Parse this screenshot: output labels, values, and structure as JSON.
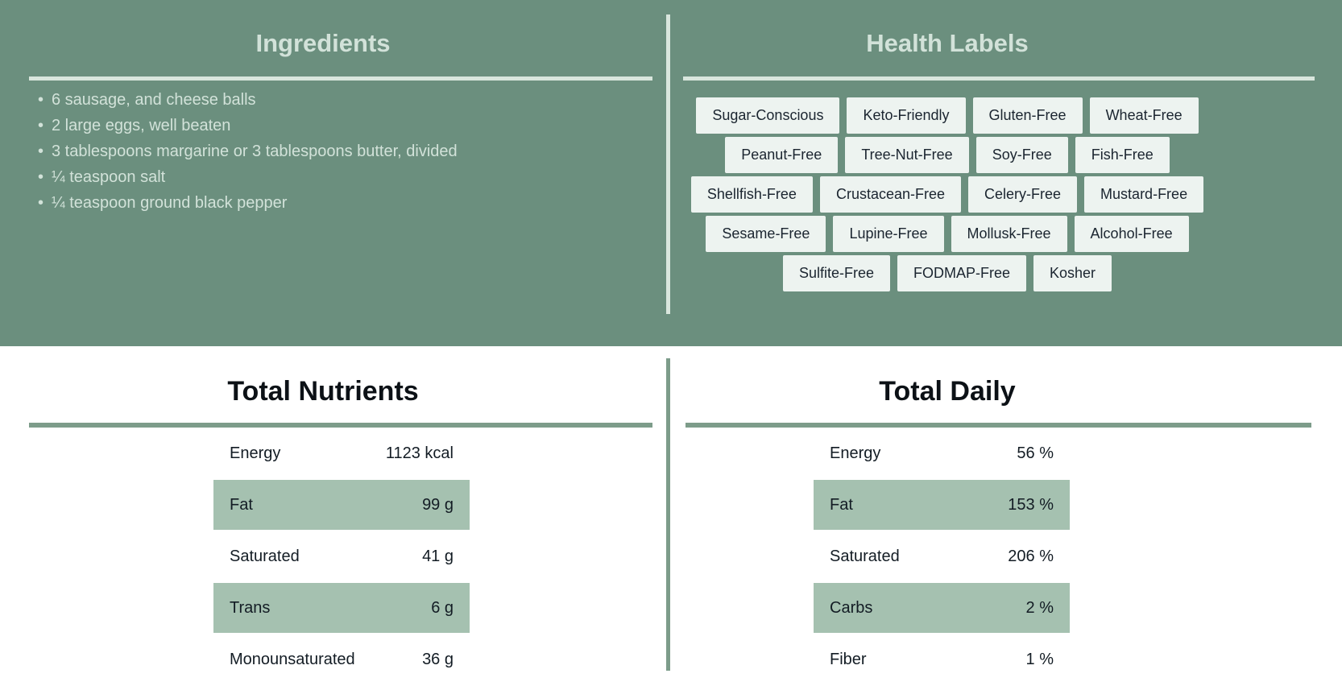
{
  "colors": {
    "top_background": "#6b8f7e",
    "pale_divider": "#d9e6dd",
    "pale_text": "#d2e2d9",
    "sage_accent": "#7d9c8a",
    "row_highlight": "#a5c1b0",
    "badge_background": "#edf3f0",
    "dark_text": "#131c24"
  },
  "ingredients": {
    "title": "Ingredients",
    "items": [
      "6 sausage, and cheese balls",
      "2 large eggs, well beaten",
      "3 tablespoons margarine or 3 tablespoons butter, divided",
      "¼ teaspoon salt",
      "¼ teaspoon ground black pepper"
    ]
  },
  "health_labels": {
    "title": "Health Labels",
    "labels": [
      "Sugar-Conscious",
      "Keto-Friendly",
      "Gluten-Free",
      "Wheat-Free",
      "Peanut-Free",
      "Tree-Nut-Free",
      "Soy-Free",
      "Fish-Free",
      "Shellfish-Free",
      "Crustacean-Free",
      "Celery-Free",
      "Mustard-Free",
      "Sesame-Free",
      "Lupine-Free",
      "Mollusk-Free",
      "Alcohol-Free",
      "Sulfite-Free",
      "FODMAP-Free",
      "Kosher"
    ]
  },
  "total_nutrients": {
    "title": "Total Nutrients",
    "rows": [
      {
        "label": "Energy",
        "value": "1123 kcal",
        "highlighted": false
      },
      {
        "label": "Fat",
        "value": "99 g",
        "highlighted": true
      },
      {
        "label": "Saturated",
        "value": "41 g",
        "highlighted": false
      },
      {
        "label": "Trans",
        "value": "6 g",
        "highlighted": true
      },
      {
        "label": "Monounsaturated",
        "value": "36 g",
        "highlighted": false
      }
    ]
  },
  "total_daily": {
    "title": "Total Daily",
    "rows": [
      {
        "label": "Energy",
        "value": "56 %",
        "highlighted": false
      },
      {
        "label": "Fat",
        "value": "153 %",
        "highlighted": true
      },
      {
        "label": "Saturated",
        "value": "206 %",
        "highlighted": false
      },
      {
        "label": "Carbs",
        "value": "2 %",
        "highlighted": true
      },
      {
        "label": "Fiber",
        "value": "1 %",
        "highlighted": false
      }
    ]
  }
}
